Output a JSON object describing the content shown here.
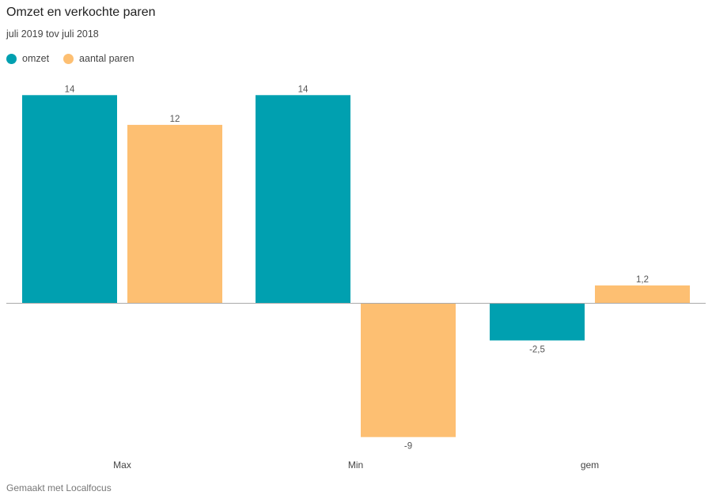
{
  "title": "Omzet en verkochte paren",
  "subtitle": "juli 2019 tov juli 2018",
  "footer": "Gemaakt met Localfocus",
  "chart_data": {
    "type": "bar",
    "categories": [
      "Max",
      "Min",
      "gem"
    ],
    "series": [
      {
        "name": "omzet",
        "color": "#00a0b0",
        "values": [
          14,
          14,
          -2.5
        ],
        "labels": [
          "14",
          "14",
          "-2,5"
        ]
      },
      {
        "name": "aantal paren",
        "color": "#fdbf72",
        "values": [
          12,
          -9,
          1.2
        ],
        "labels": [
          "12",
          "-9",
          "1,2"
        ]
      }
    ],
    "grid": false,
    "legend": "top-left"
  }
}
